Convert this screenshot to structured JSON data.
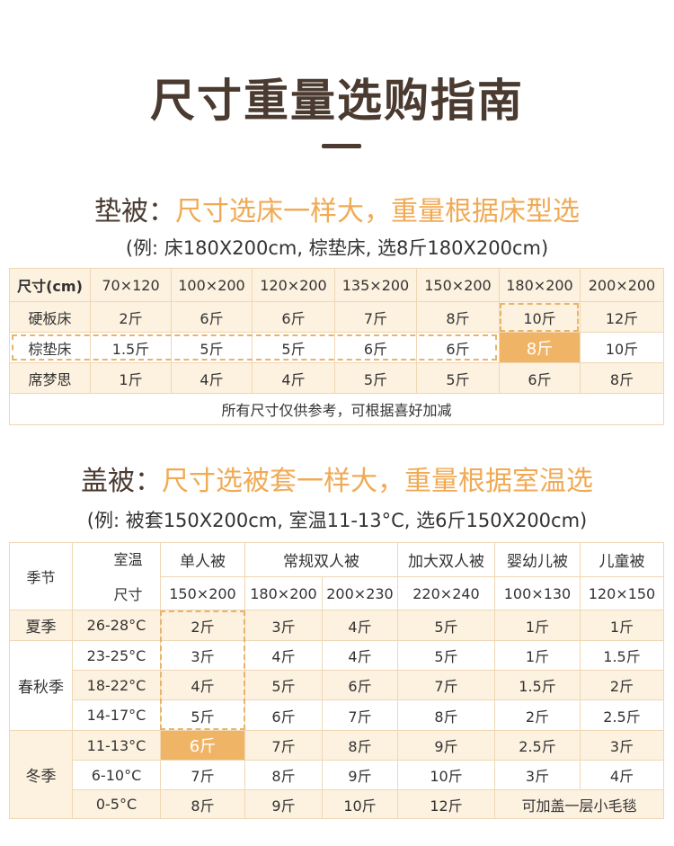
{
  "header": {
    "title": "尺寸重量选购指南"
  },
  "mattress": {
    "label": "垫被：",
    "heading": "尺寸选床一样大，重量根据床型选",
    "example": "(例: 床180X200cm, 棕垫床, 选8斤180X200cm)",
    "table": {
      "corner": "尺寸(cm)",
      "columns": [
        "70×120",
        "100×200",
        "120×200",
        "135×200",
        "150×200",
        "180×200",
        "200×200"
      ],
      "rows": [
        {
          "label": "硬板床",
          "cells": [
            "2斤",
            "6斤",
            "6斤",
            "7斤",
            "8斤",
            "10斤",
            "12斤"
          ]
        },
        {
          "label": "棕垫床",
          "cells": [
            "1.5斤",
            "5斤",
            "5斤",
            "6斤",
            "6斤",
            "8斤",
            "10斤"
          ]
        },
        {
          "label": "席梦思",
          "cells": [
            "1斤",
            "4斤",
            "4斤",
            "5斤",
            "5斤",
            "6斤",
            "8斤"
          ]
        }
      ],
      "note": "所有尺寸仅供参考，可根据喜好加减"
    }
  },
  "quilt": {
    "label": "盖被：",
    "heading": "尺寸选被套一样大，重量根据室温选",
    "example": "(例: 被套150X200cm, 室温11-13°C, 选6斤150X200cm)",
    "table": {
      "season_header": "季节",
      "temp_header": "室温",
      "size_header": "尺寸",
      "groups": [
        {
          "name": "单人被",
          "sizes": [
            "150×200"
          ]
        },
        {
          "name": "常规双人被",
          "sizes": [
            "180×200",
            "200×230"
          ]
        },
        {
          "name": "加大双人被",
          "sizes": [
            "220×240"
          ]
        },
        {
          "name": "婴幼儿被",
          "sizes": [
            "100×130"
          ]
        },
        {
          "name": "儿童被",
          "sizes": [
            "120×150"
          ]
        }
      ],
      "seasons": [
        {
          "name": "夏季",
          "rows": [
            {
              "temp": "26-28°C",
              "cells": [
                "2斤",
                "3斤",
                "4斤",
                "5斤",
                "1斤",
                "1斤"
              ]
            }
          ]
        },
        {
          "name": "春秋季",
          "rows": [
            {
              "temp": "23-25°C",
              "cells": [
                "3斤",
                "4斤",
                "4斤",
                "5斤",
                "1斤",
                "1.5斤"
              ]
            },
            {
              "temp": "18-22°C",
              "cells": [
                "4斤",
                "5斤",
                "6斤",
                "7斤",
                "1.5斤",
                "2斤"
              ]
            },
            {
              "temp": "14-17°C",
              "cells": [
                "5斤",
                "6斤",
                "7斤",
                "8斤",
                "2斤",
                "2.5斤"
              ]
            }
          ]
        },
        {
          "name": "冬季",
          "rows": [
            {
              "temp": "11-13°C",
              "cells": [
                "6斤",
                "7斤",
                "8斤",
                "9斤",
                "2.5斤",
                "3斤"
              ]
            },
            {
              "temp": "6-10°C",
              "cells": [
                "7斤",
                "8斤",
                "9斤",
                "10斤",
                "3斤",
                "4斤"
              ]
            },
            {
              "temp": "0-5°C",
              "cells": [
                "8斤",
                "9斤",
                "10斤",
                "12斤",
                "可加盖一层小毛毯"
              ]
            }
          ]
        }
      ]
    }
  }
}
